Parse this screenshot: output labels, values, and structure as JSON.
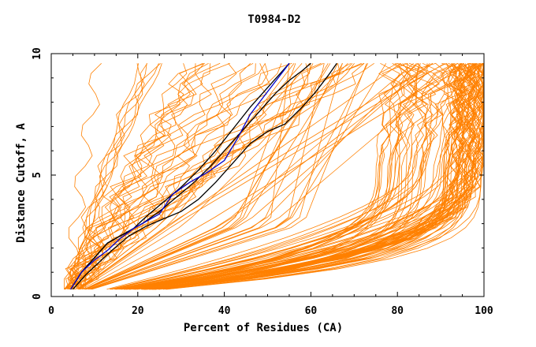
{
  "chart_data": {
    "type": "line",
    "title": "T0984-D2",
    "xlabel": "Percent of Residues (CA)",
    "ylabel": "Distance Cutoff, A",
    "xlim": [
      0,
      100
    ],
    "ylim": [
      0,
      10
    ],
    "x_ticks": [
      "0",
      "20",
      "40",
      "60",
      "80",
      "100"
    ],
    "y_ticks": [
      "0",
      "5",
      "10"
    ],
    "grid": false,
    "legend": "none",
    "colors": {
      "background_models": "#ff8000",
      "highlight_black": "#000000",
      "highlight_blue": "#0000cc"
    },
    "series": [
      {
        "color": "#000000",
        "x": [
          4.5,
          7,
          10,
          13,
          16,
          19,
          22,
          26,
          30,
          34,
          38,
          42,
          46,
          50,
          52,
          55
        ],
        "y": [
          0.3,
          1.0,
          1.6,
          2.2,
          2.5,
          2.8,
          3.3,
          3.9,
          4.5,
          5.2,
          6.0,
          6.9,
          7.8,
          8.6,
          9.0,
          9.6
        ]
      },
      {
        "color": "#000000",
        "x": [
          4.5,
          7,
          10,
          13,
          17,
          21,
          25,
          29,
          33,
          37,
          41,
          45,
          49,
          52,
          55,
          58,
          60
        ],
        "y": [
          0.3,
          1.0,
          1.6,
          2.2,
          2.6,
          3.0,
          3.5,
          4.1,
          4.7,
          5.4,
          6.2,
          7.0,
          7.8,
          8.4,
          8.9,
          9.3,
          9.6
        ]
      },
      {
        "color": "#000000",
        "x": [
          5,
          8,
          11,
          14,
          18,
          22,
          26,
          30,
          34,
          38,
          42,
          46,
          50,
          54,
          58,
          61,
          64,
          66
        ],
        "y": [
          0.3,
          0.9,
          1.4,
          1.9,
          2.5,
          2.9,
          3.2,
          3.5,
          4.0,
          4.7,
          5.5,
          6.3,
          6.8,
          7.1,
          7.8,
          8.4,
          9.1,
          9.6
        ]
      },
      {
        "color": "#0000cc",
        "x": [
          4.5,
          7,
          10,
          13,
          16,
          19,
          22,
          25,
          28,
          32,
          36,
          40,
          43,
          46,
          49,
          52,
          55
        ],
        "y": [
          0.3,
          1.0,
          1.5,
          1.9,
          2.4,
          2.8,
          3.1,
          3.4,
          4.2,
          4.7,
          5.1,
          5.6,
          6.5,
          7.5,
          8.2,
          8.9,
          9.6
        ]
      }
    ]
  }
}
